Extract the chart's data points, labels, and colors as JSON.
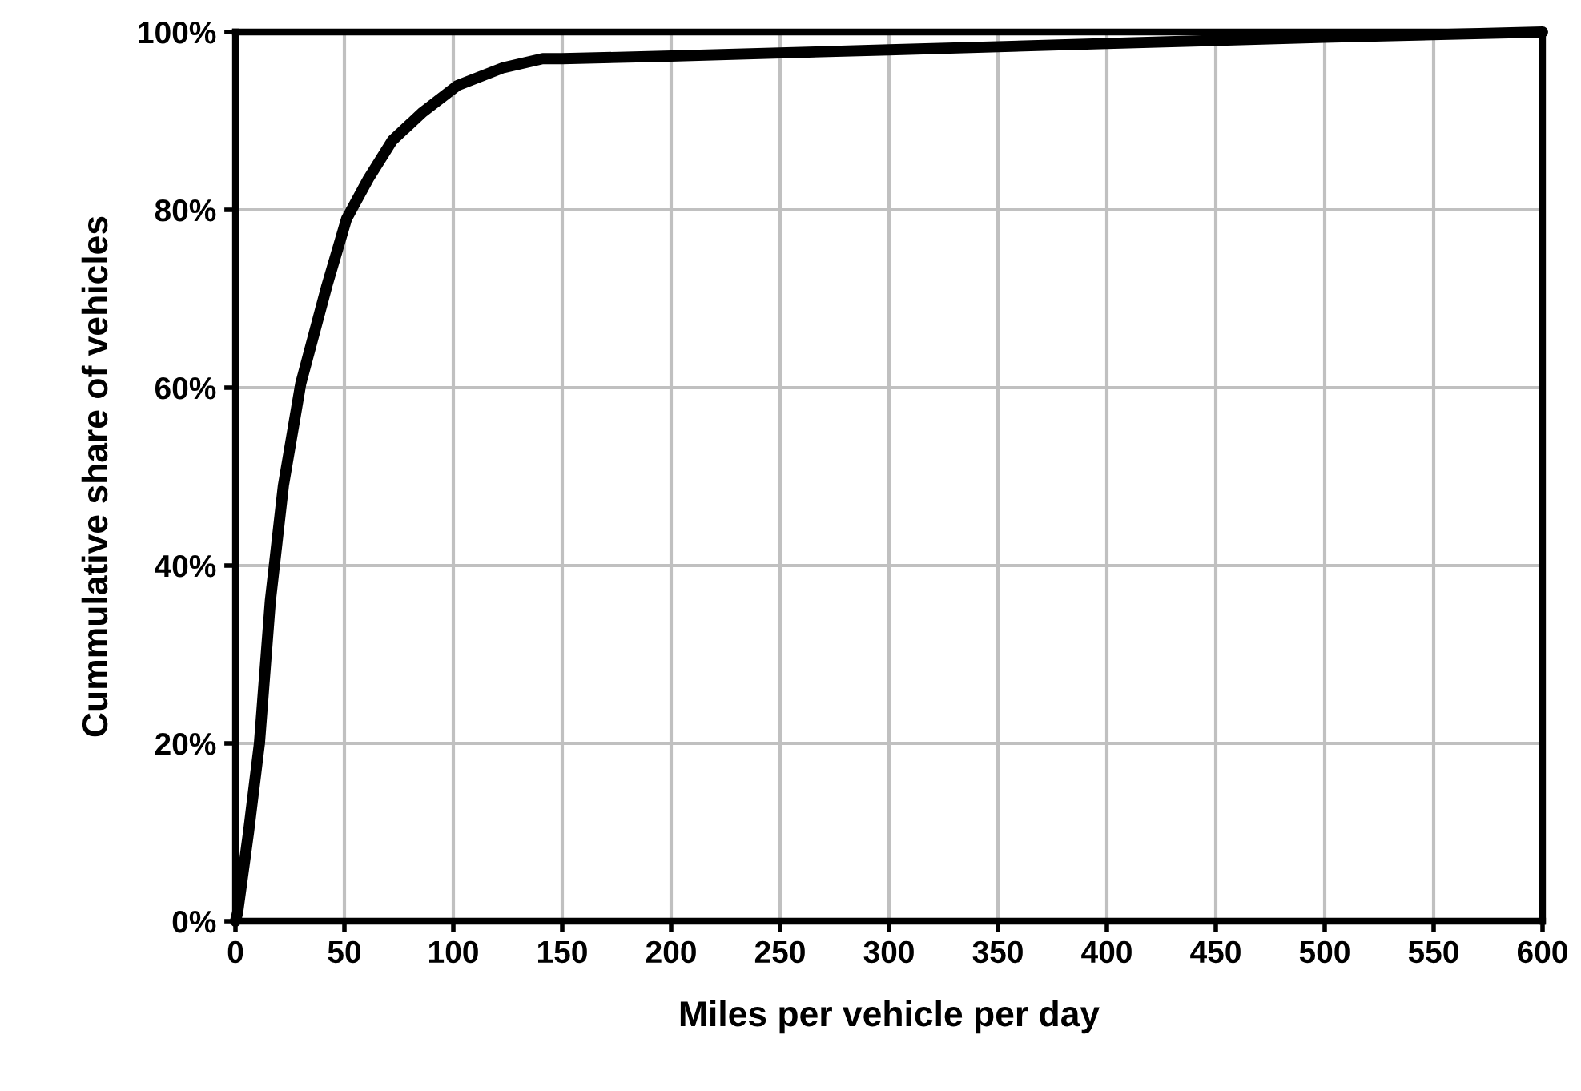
{
  "chart_data": {
    "type": "line",
    "xlabel": "Miles per vehicle per day",
    "ylabel": "Cummulative share of vehicles",
    "x": [
      0,
      1,
      6,
      11,
      16,
      22,
      30,
      42,
      51,
      61,
      72,
      86,
      102,
      123,
      141,
      150,
      200,
      300,
      400,
      500,
      600
    ],
    "series": [
      {
        "color": "#000000",
        "values": [
          0,
          1,
          10,
          20,
          36,
          49,
          60.5,
          71.5,
          79,
          83.5,
          87.8,
          91,
          94,
          96,
          97,
          97,
          97.3,
          98,
          98.7,
          99.4,
          100
        ]
      }
    ],
    "xlim": [
      0,
      600
    ],
    "xticks": [
      0,
      50,
      100,
      150,
      200,
      250,
      300,
      350,
      400,
      450,
      500,
      550,
      600
    ],
    "ylim": [
      0,
      100
    ],
    "yticks": [
      {
        "value": 0,
        "label": "0%"
      },
      {
        "value": 20,
        "label": "20%"
      },
      {
        "value": 40,
        "label": "40%"
      },
      {
        "value": 60,
        "label": "60%"
      },
      {
        "value": 80,
        "label": "80%"
      },
      {
        "value": 100,
        "label": "100%"
      }
    ],
    "grid": true,
    "legend": false,
    "marker": "none",
    "line_style": "solid"
  }
}
